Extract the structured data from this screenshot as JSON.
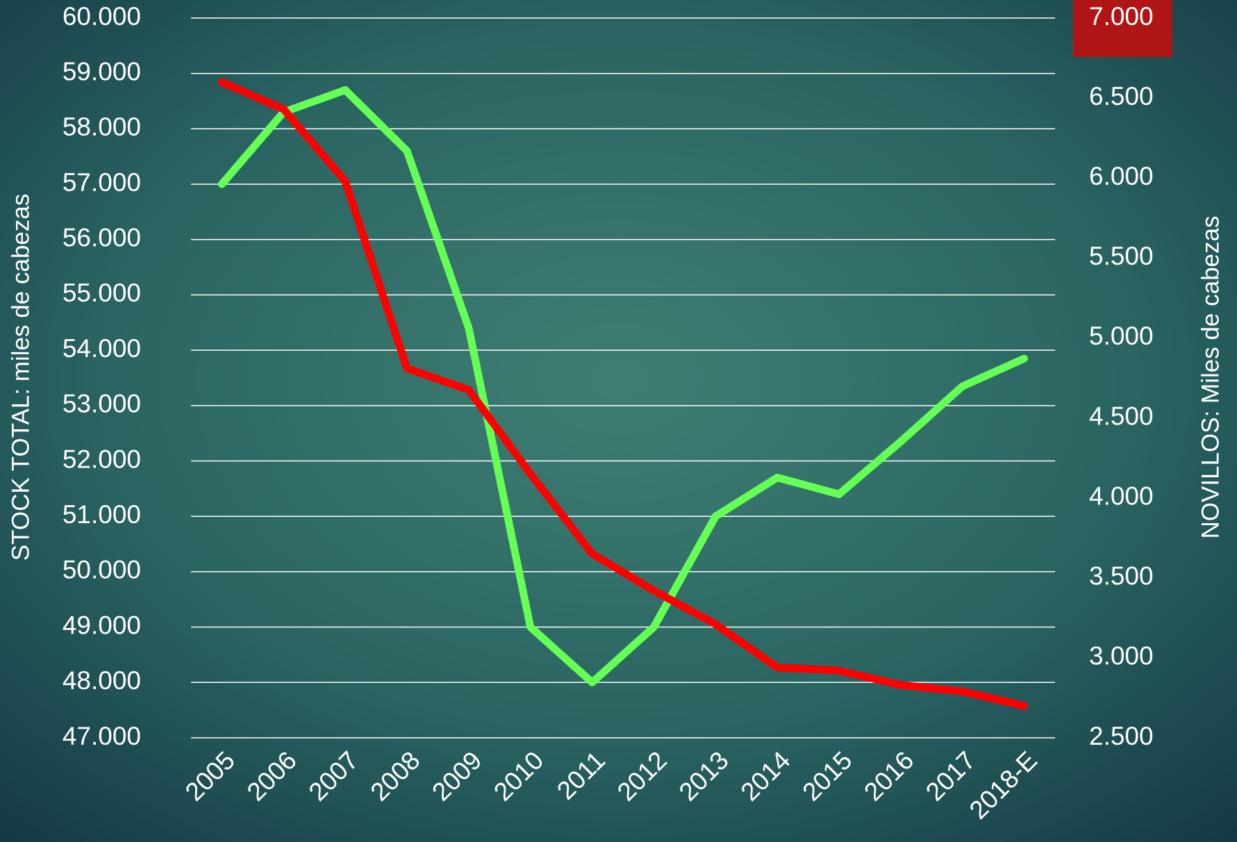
{
  "chart_data": {
    "type": "line",
    "y_label": "STOCK TOTAL: miles de cabezas",
    "y2_label": "NOVILLOS: Miles de cabezas",
    "categories": [
      "2005",
      "2006",
      "2007",
      "2008",
      "2009",
      "2010",
      "2011",
      "2012",
      "2013",
      "2014",
      "2015",
      "2016",
      "2017",
      "2018-E"
    ],
    "series": [
      {
        "color": "#66ff55",
        "axis": "y",
        "values": [
          57000,
          58300,
          58700,
          57600,
          54400,
          49000,
          48000,
          49000,
          51000,
          51700,
          51400,
          52350,
          53350,
          53850
        ]
      },
      {
        "color": "#ff0000",
        "axis": "y2",
        "values": [
          6600,
          6430,
          5980,
          4810,
          4675,
          4150,
          3650,
          3420,
          3210,
          2940,
          2920,
          2830,
          2790,
          2700
        ]
      }
    ],
    "ylim": [
      47000,
      60000
    ],
    "yticks": [
      {
        "value": 47000,
        "label": "47.000"
      },
      {
        "value": 48000,
        "label": "48.000"
      },
      {
        "value": 49000,
        "label": "49.000"
      },
      {
        "value": 50000,
        "label": "50.000"
      },
      {
        "value": 51000,
        "label": "51.000"
      },
      {
        "value": 52000,
        "label": "52.000"
      },
      {
        "value": 53000,
        "label": "53.000"
      },
      {
        "value": 54000,
        "label": "54.000"
      },
      {
        "value": 55000,
        "label": "55.000"
      },
      {
        "value": 56000,
        "label": "56.000"
      },
      {
        "value": 57000,
        "label": "57.000"
      },
      {
        "value": 58000,
        "label": "58.000"
      },
      {
        "value": 59000,
        "label": "59.000"
      },
      {
        "value": 60000,
        "label": "60.000"
      }
    ],
    "y2lim": [
      2500,
      7000
    ],
    "y2ticks": [
      {
        "value": 2500,
        "label": "2.500"
      },
      {
        "value": 3000,
        "label": "3.000"
      },
      {
        "value": 3500,
        "label": "3.500"
      },
      {
        "value": 4000,
        "label": "4.000"
      },
      {
        "value": 4500,
        "label": "4.500"
      },
      {
        "value": 5000,
        "label": "5.000"
      },
      {
        "value": 5500,
        "label": "5.500"
      },
      {
        "value": 6000,
        "label": "6.000"
      },
      {
        "value": 6500,
        "label": "6.500"
      },
      {
        "value": 7000,
        "label": "7.000"
      }
    ],
    "grid": true
  }
}
